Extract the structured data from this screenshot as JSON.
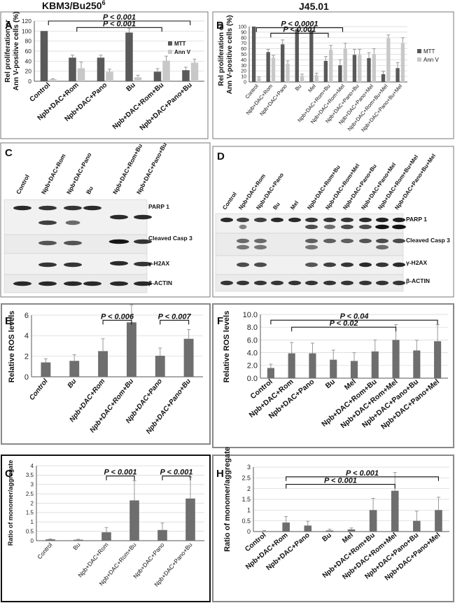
{
  "titles": {
    "left": "KBM3/Bu250",
    "left_sup": "6",
    "right": "J45.01"
  },
  "colors": {
    "mtt": "#595959",
    "annv": "#c8c8c8",
    "bar": "#6e6e6e",
    "text": "#111111"
  },
  "western": {
    "C": {
      "letter": "C",
      "lanes": [
        "Control",
        "Npb+DAC+Rom",
        "Npb+DAC+Pano",
        "Bu",
        "Npb+DAC+Rom+Bu",
        "Npb+DAC+Pano+Bu"
      ],
      "bands": [
        "PARP 1",
        "Cleaved Casp 3",
        "γ-H2AX",
        "β-ACTIN"
      ]
    },
    "D": {
      "letter": "D",
      "lanes": [
        "Control",
        "Npb+DAC+Rom",
        "Npb+DAC+Pano",
        "Bu",
        "Mel",
        "Npb+DAC+Rom+Bu",
        "Npb+DAC+Rom+Mel",
        "Npb+DAC+Pano+Bu",
        "Npb+DAC+Pano+Mel",
        "Npb+DAC+Rom+Bu+Mel",
        "Npb+DAC+Pano+Bu+Mel"
      ],
      "bands": [
        "PARP 1",
        "Cleaved Casp 3",
        "γ-H2AX",
        "β-ACTIN"
      ]
    }
  },
  "chart_data": [
    {
      "id": "A",
      "letter": "A",
      "type": "bar",
      "title": "",
      "ylabel": [
        "Rel proliferation or",
        "Ann V-positive cells (%)"
      ],
      "ylim": [
        0,
        120
      ],
      "yticks": [
        0,
        20,
        40,
        60,
        80,
        100,
        120
      ],
      "categories": [
        "Control",
        "Npb+DAC+Rom",
        "Npb+DAC+Pano",
        "Bu",
        "Npb+DAC+Rom+Bu",
        "Npb+DAC+Pano+Bu"
      ],
      "series": [
        {
          "name": "MTT",
          "values": [
            100,
            47,
            47,
            97,
            19,
            22
          ],
          "errors": [
            0,
            5,
            5,
            8,
            6,
            6
          ]
        },
        {
          "name": "Ann V",
          "values": [
            4,
            26,
            19,
            8,
            41,
            37
          ],
          "errors": [
            1,
            12,
            5,
            4,
            9,
            7
          ]
        }
      ],
      "annotations": [
        {
          "text": "P < 0.001",
          "from": 1,
          "to": 4,
          "level": 107
        },
        {
          "text": "P < 0.001",
          "from": 0,
          "to": 5,
          "level": 120
        }
      ]
    },
    {
      "id": "B",
      "letter": "B",
      "type": "bar",
      "title": "",
      "ylabel": [
        "Rel proliferation or",
        "Ann V-positive cells (%)"
      ],
      "ylim": [
        0,
        100
      ],
      "yticks": [
        0,
        10,
        20,
        30,
        40,
        50,
        60,
        70,
        80,
        90,
        100
      ],
      "categories": [
        "Control",
        "Npb+DAC+Rom",
        "Npb+DAC+Pano",
        "Bu",
        "Mel",
        "Npb+DAC+Rom+Bu",
        "Npb+DAC+Rom+Mel",
        "Npb+DAC+Pano+Bu",
        "Npb+DAC+Pano+Mel",
        "Npb+DAC+Rom+Bu+Mel",
        "Npb+DAC+Pano+Bu+Mel"
      ],
      "series": [
        {
          "name": "MTT",
          "values": [
            100,
            54,
            68,
            95,
            93,
            38,
            30,
            49,
            43,
            14,
            25
          ],
          "errors": [
            0,
            5,
            8,
            3,
            4,
            8,
            10,
            10,
            10,
            5,
            10
          ]
        },
        {
          "name": "Ann V",
          "values": [
            7,
            44,
            33,
            11,
            12,
            58,
            60,
            49,
            50,
            79,
            70
          ],
          "errors": [
            2,
            4,
            5,
            3,
            4,
            8,
            10,
            10,
            10,
            6,
            10
          ]
        }
      ],
      "annotations": [
        {
          "text": "P < 0.001",
          "from": 1,
          "to": 5,
          "level": 88
        },
        {
          "text": "P < 0.0001",
          "from": 0,
          "to": 6,
          "level": 98
        }
      ]
    },
    {
      "id": "E",
      "letter": "E",
      "type": "bar",
      "title": "",
      "ylabel": [
        "Relative ROS levels"
      ],
      "ylim": [
        0,
        6
      ],
      "yticks": [
        0,
        2,
        4,
        6
      ],
      "italic_ticks": true,
      "categories": [
        "Control",
        "Bu",
        "Npb+DAC+Rom",
        "Npb+DAC+Rom+Bu",
        "Npb+DAC+Pano",
        "Npb+DAC+Pano+Bu"
      ],
      "series": [
        {
          "name": "ROS",
          "values": [
            1.4,
            1.55,
            2.5,
            5.3,
            2.05,
            3.7
          ],
          "errors": [
            0.35,
            0.6,
            1.2,
            1.7,
            0.75,
            0.9
          ]
        }
      ],
      "annotations": [
        {
          "text": "P < 0.006",
          "from": 2,
          "to": 3,
          "level": 5.5
        },
        {
          "text": "P < 0.007",
          "from": 4,
          "to": 5,
          "level": 5.5
        }
      ]
    },
    {
      "id": "F",
      "letter": "F",
      "type": "bar",
      "title": "",
      "ylabel": [
        "Relative ROS levels"
      ],
      "ylim": [
        0,
        10
      ],
      "yticks": [
        0,
        2,
        4,
        6,
        8,
        10
      ],
      "yticklabels": [
        "0.0",
        "2.0",
        "4.0",
        "6.0",
        "8.0",
        "10.0"
      ],
      "categories": [
        "Control",
        "Npb+DAC+Rom",
        "Npb+DAC+Pano",
        "Bu",
        "Mel",
        "Npb+DAC+Rom+Bu",
        "Npb+DAC+Rom+Mel",
        "Npb+DAC+Pano+Bu",
        "Npb+DAC+Pano+Mel"
      ],
      "series": [
        {
          "name": "ROS",
          "values": [
            1.6,
            3.9,
            3.9,
            2.9,
            2.7,
            4.2,
            6.0,
            4.35,
            5.8
          ],
          "errors": [
            0.6,
            1.7,
            1.6,
            1.5,
            1.3,
            1.8,
            2.4,
            1.6,
            2.6
          ]
        }
      ],
      "annotations": [
        {
          "text": "P < 0.02",
          "from": 1,
          "to": 6,
          "level": 8.0
        },
        {
          "text": "P < 0.04",
          "from": 0,
          "to": 8,
          "level": 9.1
        }
      ]
    },
    {
      "id": "G",
      "letter": "G",
      "type": "bar",
      "title": "",
      "ylabel": [
        "Ratio of monomer/aggregate"
      ],
      "ylim": [
        0,
        4
      ],
      "yticks": [
        0,
        0.5,
        1,
        1.5,
        2,
        2.5,
        3,
        3.5,
        4
      ],
      "yticklabels": [
        "0",
        "0.5",
        "1",
        "1.5",
        "2",
        "2.5",
        "3",
        "3.5",
        "4"
      ],
      "categories": [
        "Control",
        "Bu",
        "Npb+DAC+Rom",
        "Npb+DAC+Rom+Bu",
        "Npb+DAC+Pano",
        "Npb+DAC+Pano+Bu"
      ],
      "series": [
        {
          "name": "Ratio",
          "values": [
            0.07,
            0.05,
            0.45,
            2.15,
            0.57,
            2.25
          ],
          "errors": [
            0.03,
            0.03,
            0.25,
            1.05,
            0.37,
            1.15
          ]
        }
      ],
      "annotations": [
        {
          "text": "P < 0.001",
          "from": 2,
          "to": 3,
          "level": 3.45
        },
        {
          "text": "P < 0.001",
          "from": 4,
          "to": 5,
          "level": 3.45
        }
      ]
    },
    {
      "id": "H",
      "letter": "H",
      "type": "bar",
      "title": "",
      "ylabel": [
        "Ratio of monomer/aggregate"
      ],
      "ylim": [
        0,
        3
      ],
      "yticks": [
        0,
        0.5,
        1,
        1.5,
        2,
        2.5,
        3
      ],
      "yticklabels": [
        "0",
        "0.5",
        "1",
        "1.5",
        "2",
        "2.5",
        "3"
      ],
      "categories": [
        "Control",
        "Npb+DAC+Rom",
        "Npb+DAC+Pano",
        "Bu",
        "Mel",
        "Npb+DAC+Rom+Bu",
        "Npb+DAC+Rom+Mel",
        "Npb+DAC+Pano+Bu",
        "Npb+DAC+Pano+Mel"
      ],
      "series": [
        {
          "name": "Ratio",
          "values": [
            0.02,
            0.42,
            0.28,
            0.05,
            0.1,
            1.0,
            1.9,
            0.5,
            1.0
          ],
          "errors": [
            0.03,
            0.28,
            0.2,
            0.06,
            0.07,
            0.55,
            0.85,
            0.45,
            0.6
          ]
        }
      ],
      "annotations": [
        {
          "text": "P < 0.001",
          "from": 1,
          "to": 6,
          "level": 2.2
        },
        {
          "text": "P < 0.001",
          "from": 1,
          "to": 8,
          "level": 2.55
        }
      ]
    }
  ]
}
